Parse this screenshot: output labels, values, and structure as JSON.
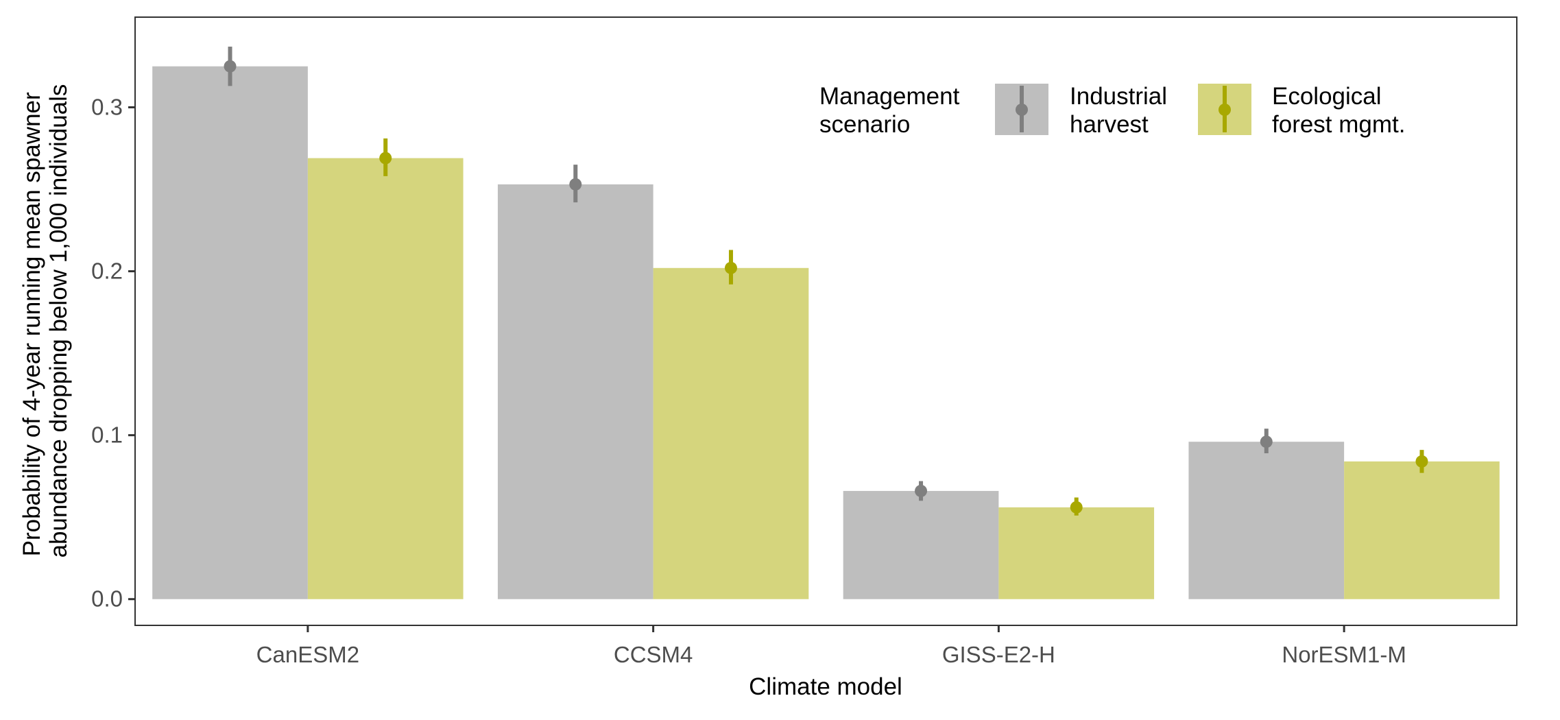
{
  "chart_data": {
    "type": "bar",
    "xlabel": "Climate model",
    "ylabel_lines": [
      "Probability of 4-year running mean spawner",
      "abundance dropping below 1,000 individuals"
    ],
    "categories": [
      "CanESM2",
      "CCSM4",
      "GISS-E2-H",
      "NorESM1-M"
    ],
    "ylim": [
      -0.016,
      0.355
    ],
    "yticks": [
      0.0,
      0.1,
      0.2,
      0.3
    ],
    "ytick_labels": [
      "0.0",
      "0.1",
      "0.2",
      "0.3"
    ],
    "grid": false,
    "legend": {
      "position": "top-right, inside plot",
      "title_lines": [
        "Management",
        "scenario"
      ]
    },
    "series": [
      {
        "name_lines": [
          "Industrial",
          "harvest"
        ],
        "values": [
          0.325,
          0.253,
          0.066,
          0.096
        ],
        "error_low": [
          0.313,
          0.242,
          0.06,
          0.089
        ],
        "error_high": [
          0.337,
          0.265,
          0.072,
          0.104
        ],
        "bar_color": "#bebebe",
        "point_color": "#7f7f7f"
      },
      {
        "name_lines": [
          "Ecological",
          "forest mgmt."
        ],
        "values": [
          0.269,
          0.202,
          0.056,
          0.084
        ],
        "error_low": [
          0.258,
          0.192,
          0.051,
          0.077
        ],
        "error_high": [
          0.281,
          0.213,
          0.062,
          0.091
        ],
        "bar_color": "#d5d57d",
        "point_color": "#a8a800"
      }
    ]
  }
}
